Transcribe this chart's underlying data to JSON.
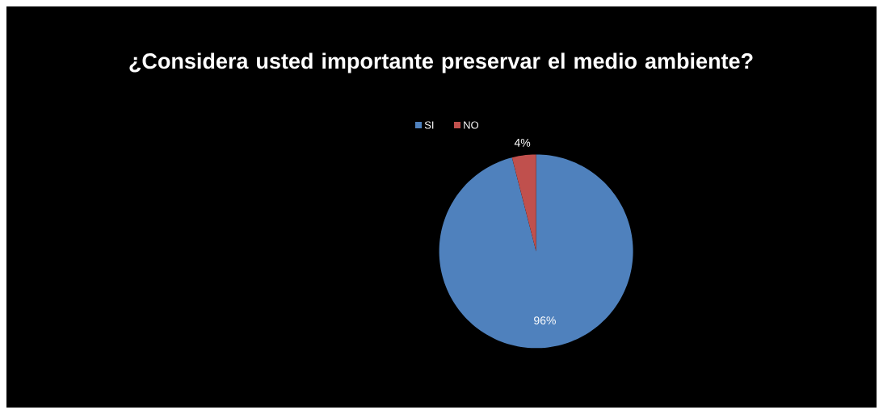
{
  "chart_data": {
    "type": "pie",
    "title": "¿Considera usted importante preservar el medio ambiente?",
    "categories": [
      "SI",
      "NO"
    ],
    "values": [
      96,
      4
    ],
    "colors": [
      "#4f81bd",
      "#c0504d"
    ],
    "value_labels": [
      "96%",
      "4%"
    ],
    "legend": "top"
  }
}
